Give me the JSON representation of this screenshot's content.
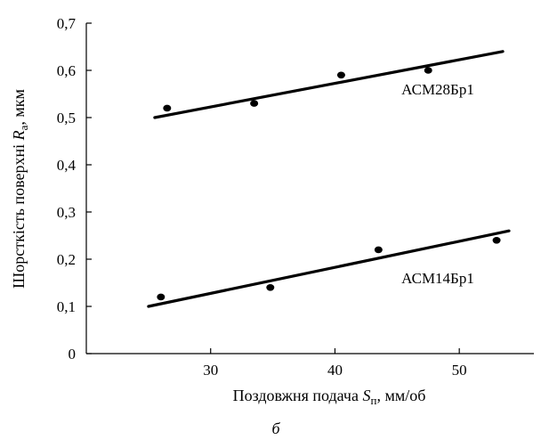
{
  "chart_data": {
    "type": "scatter",
    "xlabel": {
      "text": "Поздовжня подача ",
      "var": "S",
      "sub": "п",
      "unit": ", мм/об"
    },
    "ylabel": {
      "text": "Шорсткість поверхні ",
      "var": "R",
      "sub": "a",
      "unit": ", мкм"
    },
    "xlim": [
      20,
      56
    ],
    "ylim": [
      0,
      0.7
    ],
    "x_ticks": [
      30,
      40,
      50
    ],
    "x_tick_labels": [
      "30",
      "40",
      "50"
    ],
    "y_ticks": [
      0,
      0.1,
      0.2,
      0.3,
      0.4,
      0.5,
      0.6,
      0.7
    ],
    "y_tick_labels": [
      "0",
      "0,1",
      "0,2",
      "0,3",
      "0,4",
      "0,5",
      "0,6",
      "0,7"
    ],
    "grid": false,
    "panel_label": "б",
    "series": [
      {
        "name": "АСМ28Бр1",
        "points": [
          {
            "x": 26.5,
            "y": 0.52
          },
          {
            "x": 33.5,
            "y": 0.53
          },
          {
            "x": 40.5,
            "y": 0.59
          },
          {
            "x": 47.5,
            "y": 0.6
          }
        ],
        "trend": {
          "x": [
            25.5,
            53.5
          ],
          "y": [
            0.5,
            0.64
          ]
        }
      },
      {
        "name": "АСМ14Бр1",
        "points": [
          {
            "x": 26.0,
            "y": 0.12
          },
          {
            "x": 34.8,
            "y": 0.14
          },
          {
            "x": 43.5,
            "y": 0.22
          },
          {
            "x": 53.0,
            "y": 0.24
          }
        ],
        "trend": {
          "x": [
            25.0,
            54.0
          ],
          "y": [
            0.1,
            0.26
          ]
        }
      }
    ]
  }
}
